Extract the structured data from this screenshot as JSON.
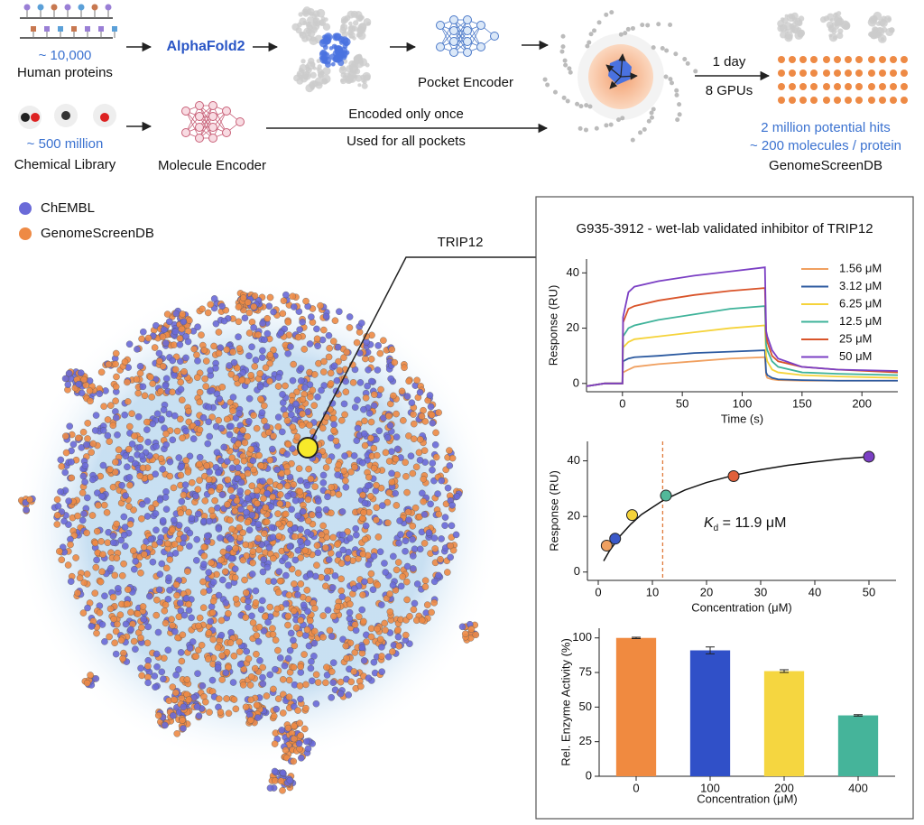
{
  "pipeline": {
    "proteins_count": "~ 10,000",
    "proteins_label": "Human proteins",
    "structure_tool": "AlphaFold2",
    "pocket_encoder": "Pocket Encoder",
    "time_cost": "1 day",
    "hardware": "8 GPUs",
    "library_count": "~ 500 million",
    "library_label": "Chemical Library",
    "molecule_encoder": "Molecule Encoder",
    "encode_note_1": "Encoded only once",
    "encode_note_2": "Used for all pockets",
    "hits": "2 million potential hits",
    "per_protein": "~ 200 molecules / protein",
    "database": "GenomeScreenDB"
  },
  "embedding": {
    "legend": [
      {
        "name": "ChEMBL",
        "color": "#6a6ad8"
      },
      {
        "name": "GenomeScreenDB",
        "color": "#ee8a45"
      }
    ],
    "highlight": "TRIP12",
    "highlight_color": "#f7ea2a"
  },
  "inset_title": "G935-3912 - wet-lab validated inhibitor of TRIP12",
  "chart_data": [
    {
      "type": "line",
      "x_label": "Time (s)",
      "y_label": "Response (RU)",
      "x": [
        -30,
        -15,
        -5,
        0,
        0.5,
        5,
        10,
        30,
        60,
        90,
        119,
        120,
        121,
        125,
        130,
        150,
        180,
        230
      ],
      "series": [
        {
          "name": "1.56 μM",
          "color": "#f0a060",
          "values": [
            -1,
            0,
            0,
            0,
            4,
            5,
            6,
            7,
            8,
            9,
            9.5,
            3,
            2,
            1.5,
            1.2,
            1,
            1,
            1
          ]
        },
        {
          "name": "3.12 μM",
          "color": "#2c5aa0",
          "values": [
            -1,
            0,
            0,
            0,
            8,
            9,
            9.5,
            10,
            11,
            11.5,
            12,
            4,
            3,
            2,
            1.5,
            1.2,
            1,
            1
          ]
        },
        {
          "name": "6.25 μM",
          "color": "#f5d33a",
          "values": [
            -1,
            0,
            0,
            0,
            13,
            15,
            16,
            17,
            18.5,
            20,
            21,
            10,
            8,
            5,
            4,
            3,
            2.5,
            2
          ]
        },
        {
          "name": "12.5 μM",
          "color": "#3fb39a",
          "values": [
            -1,
            0,
            0,
            0,
            17,
            20,
            21,
            23,
            25,
            27,
            28,
            14,
            12,
            8,
            6,
            4,
            3.5,
            3
          ]
        },
        {
          "name": "25 μM",
          "color": "#d9542a",
          "values": [
            -1,
            0,
            0,
            0,
            22,
            27,
            28,
            30,
            32,
            33.5,
            34.5,
            18,
            15,
            10,
            8,
            6,
            5,
            4
          ]
        },
        {
          "name": "50 μM",
          "color": "#7b3fc4",
          "values": [
            -1,
            0,
            0,
            0,
            24,
            33,
            35,
            37,
            39,
            40.5,
            42,
            19,
            17,
            12,
            9,
            6,
            5,
            4.5
          ]
        }
      ],
      "xlim": [
        -30,
        230
      ],
      "xticks": [
        0,
        50,
        100,
        150,
        200
      ],
      "ylim": [
        -3,
        45
      ],
      "yticks": [
        0,
        20,
        40
      ]
    },
    {
      "type": "scatter",
      "x_label": "Concentration (μM)",
      "y_label": "Response (RU)",
      "x": [
        1.56,
        3.12,
        6.25,
        12.5,
        25,
        50
      ],
      "values": [
        9.5,
        12,
        20.5,
        27.5,
        34.5,
        41.5
      ],
      "colors": [
        "#f0a060",
        "#3a58c8",
        "#f5d33a",
        "#52b89a",
        "#e0603a",
        "#7b3fc4"
      ],
      "fit": {
        "x": [
          1,
          2,
          4,
          6,
          8,
          12,
          16,
          20,
          25,
          30,
          35,
          40,
          45,
          50
        ],
        "values": [
          4.0,
          7.4,
          12.9,
          17.2,
          20.7,
          25.8,
          29.5,
          32.2,
          34.8,
          36.8,
          38.4,
          39.6,
          40.7,
          41.5
        ]
      },
      "kd": 11.9,
      "annotation": {
        "symbol": "K",
        "subscript": "d",
        "text": " = 11.9 μM"
      },
      "xlim": [
        -2,
        55
      ],
      "xticks": [
        0,
        10,
        20,
        30,
        40,
        50
      ],
      "ylim": [
        -3,
        47
      ],
      "yticks": [
        0,
        20,
        40
      ]
    },
    {
      "type": "bar",
      "x_label": "Concentration (μM)",
      "y_label": "Rel. Enzyme Activity (%)",
      "categories": [
        "0",
        "100",
        "200",
        "400"
      ],
      "values": [
        100,
        91,
        76,
        44
      ],
      "errors": [
        0.5,
        2.5,
        1,
        0.5
      ],
      "colors": [
        "#f08a40",
        "#3050c8",
        "#f5d640",
        "#45b49a"
      ],
      "ylim": [
        0,
        107
      ],
      "yticks": [
        0,
        25,
        50,
        75,
        100
      ]
    }
  ]
}
